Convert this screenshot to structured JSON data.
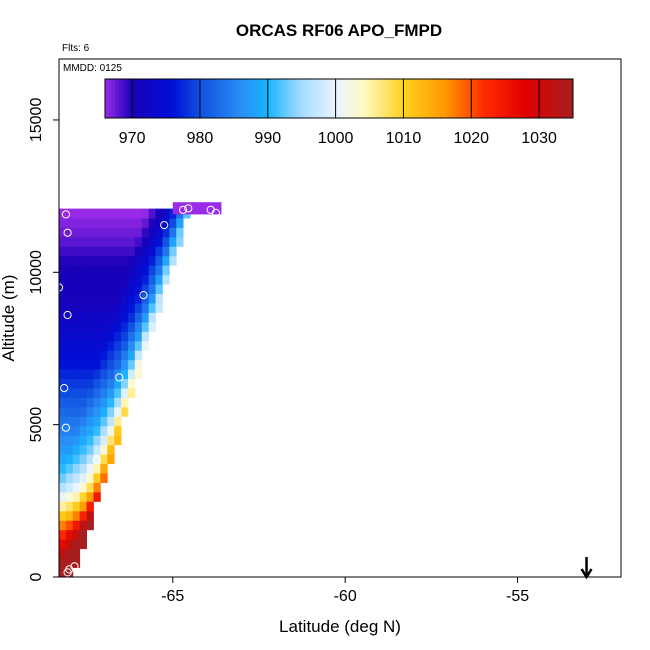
{
  "chart_data": {
    "type": "heatmap",
    "title": "ORCAS RF06 APO_FMPD",
    "notes": [
      "Flts: 6",
      "MMDD: 0125"
    ],
    "xlabel": "Latitude (deg N)",
    "ylabel": "Altitude (m)",
    "xlim": [
      -68.3,
      -52.0
    ],
    "ylim": [
      0,
      17000
    ],
    "x_ticks": [
      -65,
      -60,
      -55
    ],
    "x_tick_labels": [
      "-65",
      "-60",
      "-55"
    ],
    "y_ticks": [
      0,
      5000,
      10000,
      15000
    ],
    "y_tick_labels": [
      "0",
      "5000",
      "10000",
      "15000"
    ],
    "colorbar": {
      "range": [
        966,
        1035
      ],
      "ticks": [
        970,
        980,
        990,
        1000,
        1010,
        1020,
        1030
      ],
      "tick_labels": [
        "970",
        "980",
        "990",
        "1000",
        "1010",
        "1020",
        "1030"
      ],
      "colors": [
        {
          "v": 966,
          "c": "#9a2be8"
        },
        {
          "v": 970,
          "c": "#1a00b8"
        },
        {
          "v": 976,
          "c": "#0010d8"
        },
        {
          "v": 980,
          "c": "#1050e0"
        },
        {
          "v": 986,
          "c": "#2a8ef5"
        },
        {
          "v": 990,
          "c": "#18b4ff"
        },
        {
          "v": 995,
          "c": "#a8dcff"
        },
        {
          "v": 1000,
          "c": "#e8f4ff"
        },
        {
          "v": 1004,
          "c": "#fffac8"
        },
        {
          "v": 1010,
          "c": "#ffd21e"
        },
        {
          "v": 1016,
          "c": "#ff9a00"
        },
        {
          "v": 1022,
          "c": "#ff2a00"
        },
        {
          "v": 1028,
          "c": "#e00000"
        },
        {
          "v": 1035,
          "c": "#a81e1e"
        }
      ]
    },
    "field": {
      "cell_deg": 0.2,
      "cell_m": 310,
      "top_m": 12000,
      "edge_top_lat": -64.6,
      "edge_bottom_lat": -67.95,
      "left_lat": -68.3,
      "value_profile": [
        {
          "alt": 0,
          "v": 1030
        },
        {
          "alt": 600,
          "v": 1024
        },
        {
          "alt": 1500,
          "v": 1016
        },
        {
          "alt": 2200,
          "v": 1004
        },
        {
          "alt": 3000,
          "v": 994
        },
        {
          "alt": 4000,
          "v": 988
        },
        {
          "alt": 5500,
          "v": 982
        },
        {
          "alt": 7000,
          "v": 976
        },
        {
          "alt": 9000,
          "v": 971
        },
        {
          "alt": 10300,
          "v": 970
        },
        {
          "alt": 11000,
          "v": 968
        },
        {
          "alt": 12000,
          "v": 966
        }
      ],
      "edge_offsets": [
        {
          "d": 0.0,
          "v": 26
        },
        {
          "d": 0.25,
          "v": 14
        },
        {
          "d": 0.6,
          "v": 6
        },
        {
          "d": 1.2,
          "v": 0
        }
      ]
    },
    "samples": [
      {
        "lat": -68.05,
        "alt": 150
      },
      {
        "lat": -68.0,
        "alt": 250
      },
      {
        "lat": -67.85,
        "alt": 350
      },
      {
        "lat": -67.2,
        "alt": 3850
      },
      {
        "lat": -68.1,
        "alt": 4900
      },
      {
        "lat": -68.15,
        "alt": 6200
      },
      {
        "lat": -66.55,
        "alt": 6550
      },
      {
        "lat": -68.05,
        "alt": 8600
      },
      {
        "lat": -68.3,
        "alt": 9500
      },
      {
        "lat": -65.85,
        "alt": 9250
      },
      {
        "lat": -68.05,
        "alt": 11300
      },
      {
        "lat": -68.1,
        "alt": 11900
      },
      {
        "lat": -65.25,
        "alt": 11550
      },
      {
        "lat": -64.7,
        "alt": 12050
      },
      {
        "lat": -64.55,
        "alt": 12100
      },
      {
        "lat": -63.9,
        "alt": 12050
      },
      {
        "lat": -63.75,
        "alt": 11950
      }
    ],
    "marker": {
      "symbol": "down-arrow",
      "lat": -53.0,
      "alt": 0
    }
  }
}
